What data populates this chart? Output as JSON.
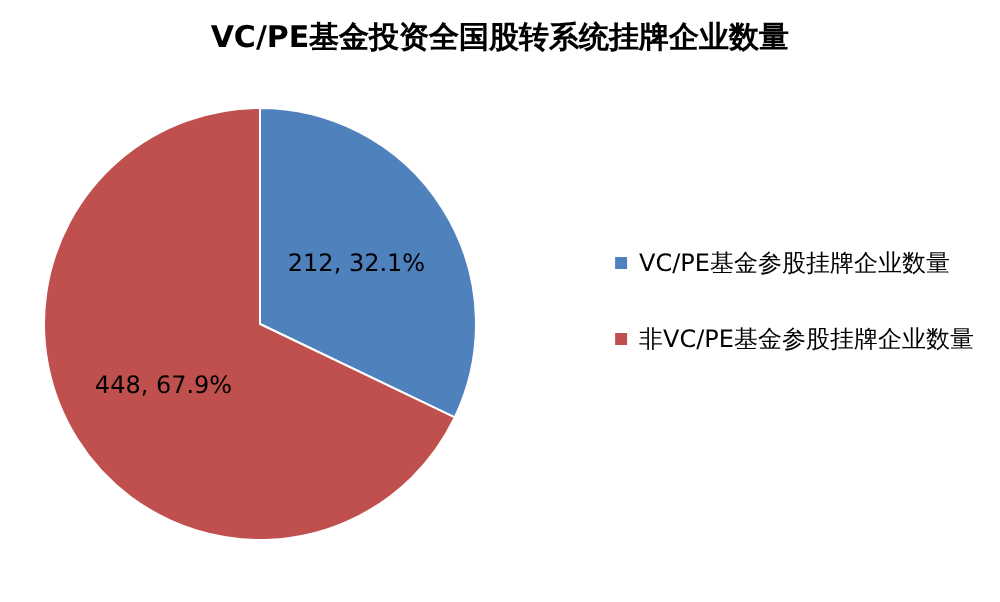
{
  "chart_data": {
    "type": "pie",
    "title": "VC/PE基金投资全国股转系统挂牌企业数量",
    "categories": [
      "VC/PE基金参股挂牌企业数量",
      "非VC/PE基金参股挂牌企业数量"
    ],
    "values": [
      212,
      448
    ],
    "colors": [
      "#4f81bd",
      "#c0504d"
    ],
    "value_labels": [
      "212, 32.1%",
      "448, 67.9%"
    ],
    "legend": "right"
  }
}
